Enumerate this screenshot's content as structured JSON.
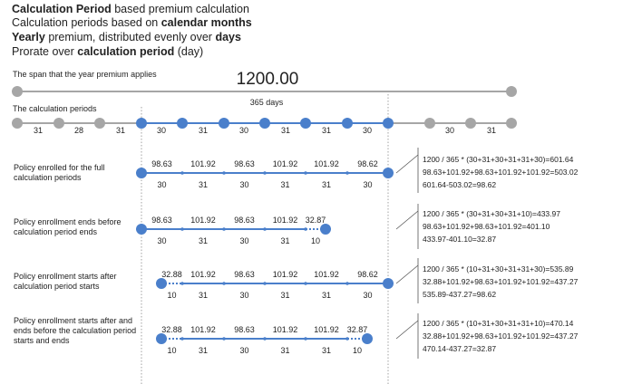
{
  "header": {
    "line1": {
      "a": "Calculation  Period",
      "b": " based premium calculation"
    },
    "line2": {
      "a": "Calculation periods based on ",
      "b": "calendar months"
    },
    "line3": {
      "a": "Yearly",
      "b": " premium, distributed evenly over ",
      "c": "days"
    },
    "line4": {
      "a": "Prorate over ",
      "b": "calculation  period",
      "c": " (day)"
    }
  },
  "span": {
    "label": "The span that the year premium applies",
    "amount": "1200.00",
    "days": "365 days"
  },
  "periods": {
    "label": "The calculation periods",
    "days": [
      "31",
      "28",
      "31",
      "30",
      "31",
      "30",
      "31",
      "31",
      "30",
      "30",
      "31"
    ]
  },
  "rows": [
    {
      "label": "Policy enrolled for the full calculation periods",
      "amounts": [
        "98.63",
        "101.92",
        "98.63",
        "101.92",
        "101.92",
        "98.62"
      ],
      "days": [
        "30",
        "31",
        "30",
        "31",
        "31",
        "30"
      ],
      "equations": [
        "1200 / 365 * (30+31+30+31+31+30)=601.64",
        "98.63+101.92+98.63+101.92+101.92=503.02",
        "601.64-503.02=98.62"
      ]
    },
    {
      "label": "Policy enrollment ends before calculation period ends",
      "amounts": [
        "98.63",
        "101.92",
        "98.63",
        "101.92",
        "32.87"
      ],
      "days": [
        "30",
        "31",
        "30",
        "31",
        "10"
      ],
      "equations": [
        "1200 / 365 * (30+31+30+31+10)=433.97",
        "98.63+101.92+98.63+101.92=401.10",
        "433.97-401.10=32.87"
      ]
    },
    {
      "label": "Policy enrollment starts after calculation period starts",
      "amounts": [
        "32.88",
        "101.92",
        "98.63",
        "101.92",
        "101.92",
        "98.62"
      ],
      "days": [
        "10",
        "31",
        "30",
        "31",
        "31",
        "30"
      ],
      "equations": [
        "1200 / 365 * (10+31+30+31+31+30)=535.89",
        "32.88+101.92+98.63+101.92+101.92=437.27",
        "535.89-437.27=98.62"
      ]
    },
    {
      "label": "Policy enrollment starts after and ends before the calculation period starts and ends",
      "amounts": [
        "32.88",
        "101.92",
        "98.63",
        "101.92",
        "101.92",
        "32.87"
      ],
      "days": [
        "10",
        "31",
        "30",
        "31",
        "31",
        "10"
      ],
      "equations": [
        "1200 / 365 * (10+31+30+31+31+10)=470.14",
        "32.88+101.92+98.63+101.92+101.92=437.27",
        "470.14-437.27=32.87"
      ]
    }
  ],
  "colors": {
    "accent": "#4a7fcb",
    "grey": "#a6a6a6",
    "text": "#222222"
  }
}
